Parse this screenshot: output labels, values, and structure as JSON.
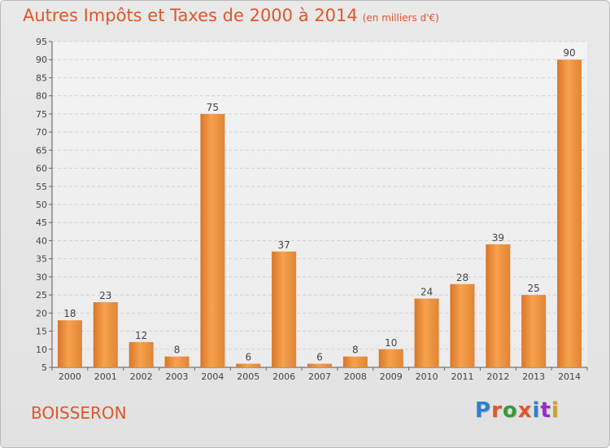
{
  "header": {
    "title": "Autres Impôts et Taxes de 2000 à 2014",
    "subtitle": "(en milliers d'€)"
  },
  "footer": {
    "place": "BOISSERON",
    "logo": "Proxiti"
  },
  "colors": {
    "accent": "#e0562a",
    "bar_light": "#f7a24e",
    "bar_dark": "#d9762a",
    "logo_letters": [
      "#2f7fd0",
      "#e0562a",
      "#3a9a3a",
      "#e0562a",
      "#2f7fd0",
      "#9a2ad0",
      "#d0a020"
    ]
  },
  "chart_data": {
    "type": "bar",
    "title": "Autres Impôts et Taxes de 2000 à 2014",
    "xlabel": "",
    "ylabel": "",
    "categories": [
      "2000",
      "2001",
      "2002",
      "2003",
      "2004",
      "2005",
      "2006",
      "2007",
      "2008",
      "2009",
      "2010",
      "2011",
      "2012",
      "2013",
      "2014"
    ],
    "values": [
      18,
      23,
      12,
      8,
      75,
      6,
      37,
      6,
      8,
      10,
      24,
      28,
      39,
      25,
      90
    ],
    "ylim": [
      5,
      95
    ],
    "yticks": [
      5,
      10,
      15,
      20,
      25,
      30,
      35,
      40,
      45,
      50,
      55,
      60,
      65,
      70,
      75,
      80,
      85,
      90,
      95
    ],
    "grid": true,
    "legend": "none"
  }
}
